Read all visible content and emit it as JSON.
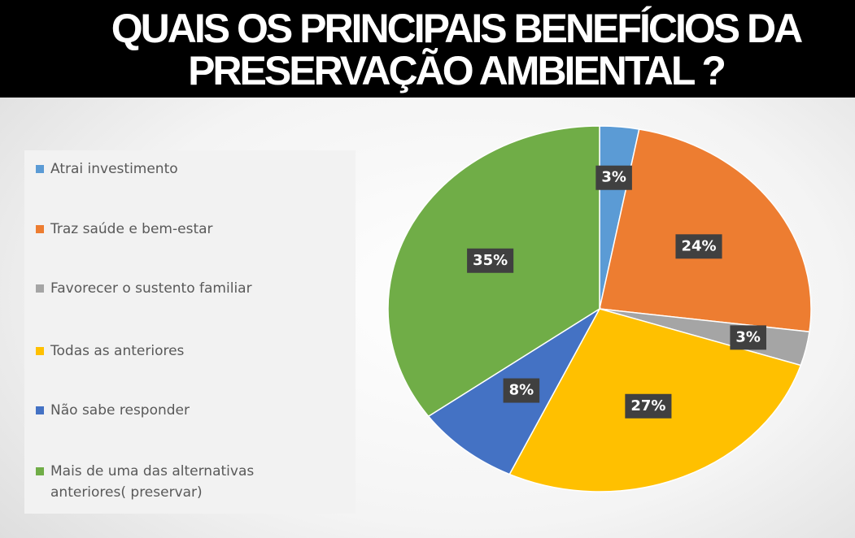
{
  "chart_data": {
    "type": "pie",
    "title": [
      "QUAIS OS PRINCIPAIS BENEFÍCIOS DA",
      "PRESERVAÇÃO AMBIENTAL ?"
    ],
    "categories": [
      "Atrai investimento",
      "Traz saúde e bem-estar",
      "Favorecer o sustento familiar",
      "Todas as anteriores",
      "Não sabe responder",
      "Mais de uma das alternativas anteriores( preservar)"
    ],
    "values": [
      3,
      24,
      3,
      27,
      8,
      35
    ],
    "value_labels": [
      "3%",
      "24%",
      "3%",
      "27%",
      "8%",
      "35%"
    ],
    "colors": [
      "#5b9bd5",
      "#ed7d31",
      "#a5a5a5",
      "#ffc000",
      "#4472c4",
      "#70ad47"
    ],
    "legend": "left"
  }
}
